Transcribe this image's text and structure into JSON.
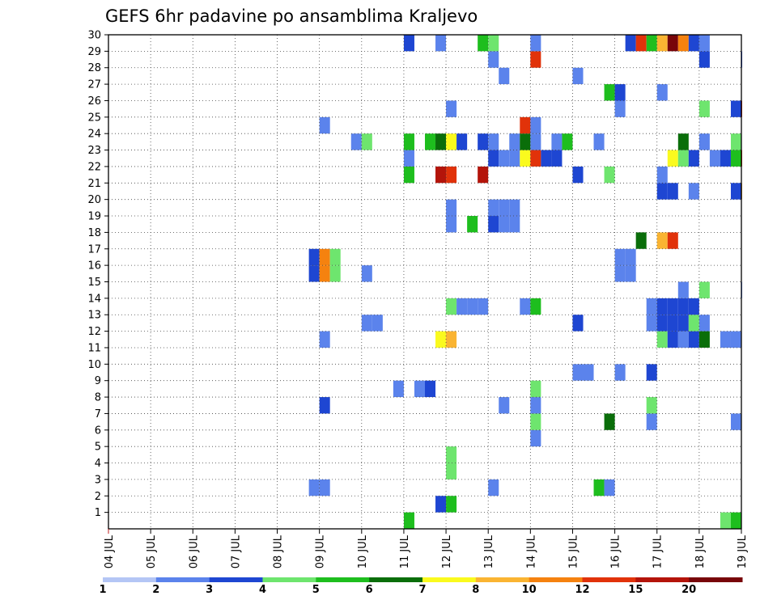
{
  "chart_data": {
    "type": "heatmap",
    "title": "GEFS 6hr padavine po ansamblima Kraljevo",
    "xlabel": "",
    "ylabel": "",
    "x_ticks": [
      "04 JUL",
      "05 JUL",
      "06 JUL",
      "07 JUL",
      "08 JUL",
      "09 JUL",
      "10 JUL",
      "11 JUL",
      "12 JUL",
      "13 JUL",
      "14 JUL",
      "15 JUL",
      "16 JUL",
      "17 JUL",
      "18 JUL",
      "19 JUL"
    ],
    "y_ticks": [
      "1",
      "2",
      "3",
      "4",
      "5",
      "6",
      "7",
      "8",
      "9",
      "10",
      "11",
      "12",
      "13",
      "14",
      "15",
      "16",
      "17",
      "18",
      "19",
      "20",
      "21",
      "22",
      "23",
      "24",
      "25",
      "26",
      "27",
      "28",
      "29",
      "30"
    ],
    "xlim": [
      0,
      15
    ],
    "ylim": [
      0,
      30
    ],
    "steps_per_day": 4,
    "grid": true,
    "legend": {
      "position": "bottom",
      "labels": [
        "1",
        "2",
        "3",
        "4",
        "5",
        "6",
        "7",
        "8",
        "10",
        "12",
        "15",
        "20"
      ],
      "colors": [
        "#b4c6f5",
        "#5b83ec",
        "#1e46d2",
        "#6ee56e",
        "#1ebe1e",
        "#0a6e0a",
        "#fafa1e",
        "#fab432",
        "#f5820f",
        "#e1320a",
        "#b4140a",
        "#78050a"
      ]
    },
    "cells": [
      [
        7.0,
        0,
        4
      ],
      [
        14.5,
        0,
        3
      ],
      [
        14.75,
        0,
        4
      ],
      [
        7.75,
        1,
        2
      ],
      [
        8.0,
        1,
        4
      ],
      [
        4.75,
        2,
        1
      ],
      [
        5.0,
        2,
        1
      ],
      [
        9.0,
        2,
        1
      ],
      [
        11.5,
        2,
        4
      ],
      [
        11.75,
        2,
        1
      ],
      [
        8.0,
        3,
        3
      ],
      [
        8.0,
        4,
        3
      ],
      [
        10.0,
        5,
        1
      ],
      [
        10.0,
        6,
        3
      ],
      [
        11.75,
        6,
        5
      ],
      [
        12.75,
        6,
        1
      ],
      [
        14.75,
        6,
        1
      ],
      [
        5.0,
        7,
        2
      ],
      [
        9.25,
        7,
        1
      ],
      [
        10.0,
        7,
        1
      ],
      [
        12.75,
        7,
        3
      ],
      [
        6.75,
        8,
        1
      ],
      [
        7.25,
        8,
        1
      ],
      [
        7.5,
        8,
        2
      ],
      [
        10.0,
        8,
        3
      ],
      [
        11.0,
        9,
        1
      ],
      [
        11.25,
        9,
        1
      ],
      [
        12.0,
        9,
        1
      ],
      [
        12.75,
        9,
        2
      ],
      [
        5.0,
        11,
        1
      ],
      [
        7.75,
        11,
        6
      ],
      [
        8.0,
        11,
        7
      ],
      [
        13.0,
        11,
        3
      ],
      [
        13.25,
        11,
        2
      ],
      [
        13.5,
        11,
        1
      ],
      [
        13.75,
        11,
        2
      ],
      [
        14.0,
        11,
        5
      ],
      [
        14.5,
        11,
        1
      ],
      [
        14.75,
        11,
        1
      ],
      [
        6.0,
        12,
        1
      ],
      [
        6.25,
        12,
        1
      ],
      [
        11.0,
        12,
        2
      ],
      [
        12.75,
        12,
        1
      ],
      [
        13.0,
        12,
        2
      ],
      [
        13.25,
        12,
        2
      ],
      [
        13.5,
        12,
        2
      ],
      [
        13.75,
        12,
        3
      ],
      [
        14.0,
        12,
        1
      ],
      [
        8.0,
        13,
        3
      ],
      [
        8.25,
        13,
        1
      ],
      [
        8.5,
        13,
        1
      ],
      [
        8.75,
        13,
        1
      ],
      [
        9.75,
        13,
        1
      ],
      [
        10.0,
        13,
        4
      ],
      [
        12.75,
        13,
        1
      ],
      [
        13.0,
        13,
        2
      ],
      [
        13.25,
        13,
        2
      ],
      [
        13.5,
        13,
        2
      ],
      [
        13.75,
        13,
        2
      ],
      [
        13.5,
        14,
        1
      ],
      [
        14.0,
        14,
        3
      ],
      [
        15.0,
        14,
        1
      ],
      [
        4.75,
        15,
        2
      ],
      [
        5.0,
        15,
        8
      ],
      [
        5.25,
        15,
        3
      ],
      [
        6.0,
        15,
        1
      ],
      [
        12.0,
        15,
        1
      ],
      [
        12.25,
        15,
        1
      ],
      [
        4.75,
        16,
        2
      ],
      [
        5.0,
        16,
        8
      ],
      [
        5.25,
        16,
        3
      ],
      [
        12.0,
        16,
        1
      ],
      [
        12.25,
        16,
        1
      ],
      [
        12.5,
        17,
        5
      ],
      [
        13.0,
        17,
        7
      ],
      [
        13.25,
        17,
        9
      ],
      [
        8.0,
        18,
        1
      ],
      [
        8.5,
        18,
        4
      ],
      [
        9.0,
        18,
        2
      ],
      [
        9.25,
        18,
        1
      ],
      [
        9.5,
        18,
        1
      ],
      [
        8.0,
        19,
        1
      ],
      [
        9.0,
        19,
        1
      ],
      [
        9.25,
        19,
        1
      ],
      [
        9.5,
        19,
        1
      ],
      [
        13.0,
        20,
        2
      ],
      [
        13.25,
        20,
        2
      ],
      [
        13.75,
        20,
        1
      ],
      [
        14.75,
        20,
        2
      ],
      [
        15.0,
        20,
        7
      ],
      [
        7.0,
        21,
        4
      ],
      [
        7.75,
        21,
        10
      ],
      [
        8.0,
        21,
        9
      ],
      [
        8.75,
        21,
        10
      ],
      [
        11.0,
        21,
        2
      ],
      [
        11.75,
        21,
        3
      ],
      [
        13.0,
        21,
        1
      ],
      [
        7.0,
        22,
        1
      ],
      [
        9.0,
        22,
        2
      ],
      [
        9.25,
        22,
        1
      ],
      [
        9.5,
        22,
        1
      ],
      [
        9.75,
        22,
        6
      ],
      [
        10.0,
        22,
        9
      ],
      [
        10.25,
        22,
        2
      ],
      [
        10.5,
        22,
        2
      ],
      [
        13.25,
        22,
        6
      ],
      [
        13.5,
        22,
        3
      ],
      [
        13.75,
        22,
        2
      ],
      [
        14.25,
        22,
        1
      ],
      [
        14.5,
        22,
        2
      ],
      [
        14.75,
        22,
        4
      ],
      [
        15.0,
        22,
        9
      ],
      [
        5.75,
        23,
        1
      ],
      [
        6.0,
        23,
        3
      ],
      [
        7.0,
        23,
        4
      ],
      [
        7.5,
        23,
        4
      ],
      [
        7.75,
        23,
        5
      ],
      [
        8.0,
        23,
        6
      ],
      [
        8.25,
        23,
        2
      ],
      [
        8.75,
        23,
        2
      ],
      [
        9.0,
        23,
        1
      ],
      [
        9.5,
        23,
        1
      ],
      [
        9.75,
        23,
        5
      ],
      [
        10.0,
        23,
        1
      ],
      [
        10.5,
        23,
        1
      ],
      [
        10.75,
        23,
        4
      ],
      [
        11.5,
        23,
        1
      ],
      [
        13.5,
        23,
        5
      ],
      [
        14.0,
        23,
        1
      ],
      [
        14.75,
        23,
        3
      ],
      [
        5.0,
        24,
        1
      ],
      [
        9.75,
        24,
        9
      ],
      [
        10.0,
        24,
        1
      ],
      [
        8.0,
        25,
        1
      ],
      [
        12.0,
        25,
        1
      ],
      [
        14.0,
        25,
        3
      ],
      [
        14.75,
        25,
        2
      ],
      [
        15.0,
        25,
        9
      ],
      [
        11.75,
        26,
        4
      ],
      [
        12.0,
        26,
        2
      ],
      [
        13.0,
        26,
        1
      ],
      [
        9.25,
        27,
        1
      ],
      [
        11.0,
        27,
        1
      ],
      [
        9.0,
        28,
        1
      ],
      [
        10.0,
        28,
        9
      ],
      [
        14.0,
        28,
        2
      ],
      [
        15.0,
        28,
        2
      ],
      [
        7.0,
        29,
        2
      ],
      [
        7.75,
        29,
        1
      ],
      [
        8.75,
        29,
        4
      ],
      [
        9.0,
        29,
        3
      ],
      [
        10.0,
        29,
        1
      ],
      [
        12.25,
        29,
        2
      ],
      [
        12.5,
        29,
        9
      ],
      [
        12.75,
        29,
        4
      ],
      [
        13.0,
        29,
        7
      ],
      [
        13.25,
        29,
        11
      ],
      [
        13.5,
        29,
        8
      ],
      [
        13.75,
        29,
        2
      ],
      [
        14.0,
        29,
        1
      ]
    ]
  }
}
